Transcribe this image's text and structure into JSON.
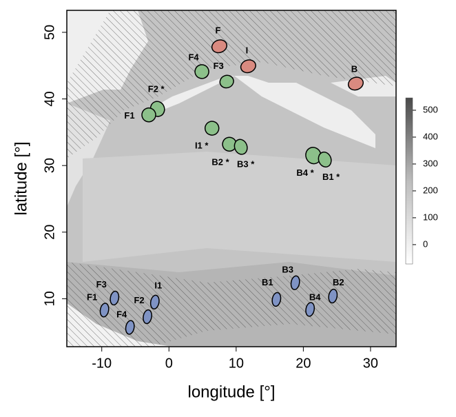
{
  "chart_data": {
    "type": "map",
    "xlabel": "longitude [°]",
    "ylabel": "latitude [°]",
    "xlim": [
      -15.2,
      33.8
    ],
    "ylim": [
      2.8,
      53.3
    ],
    "xticks": [
      -10,
      0,
      10,
      20,
      30
    ],
    "yticks": [
      10,
      20,
      30,
      40,
      50
    ],
    "series": [
      {
        "color": "#d98a80",
        "labels": [
          "F",
          "I",
          "B"
        ],
        "x": [
          7.5,
          11.8,
          27.8
        ],
        "y": [
          47.9,
          44.9,
          42.3
        ]
      },
      {
        "color": "#8cc08a",
        "labels": [
          "F4",
          "F3",
          "F2 *",
          "F1",
          "I1 *",
          "B2 *",
          "B3 *",
          "B4 *",
          "B1 *"
        ],
        "x": [
          4.9,
          8.6,
          -1.7,
          -3.0,
          6.4,
          9.0,
          10.7,
          21.5,
          23.2
        ],
        "y": [
          44.1,
          42.6,
          38.5,
          37.6,
          35.6,
          33.2,
          32.8,
          31.5,
          30.9
        ]
      },
      {
        "color": "#7f93c4",
        "labels": [
          "F3",
          "F1",
          "F2",
          "F4",
          "I1",
          "B1",
          "B3",
          "B4",
          "B2"
        ],
        "x": [
          -8.1,
          -9.6,
          -3.2,
          -5.8,
          -2.1,
          16.0,
          18.8,
          21.0,
          24.4
        ],
        "y": [
          10.1,
          8.3,
          7.3,
          5.7,
          9.5,
          9.9,
          12.4,
          8.4,
          10.4
        ]
      }
    ],
    "colorbar": {
      "lim": [
        -72,
        546
      ],
      "ticks": [
        0,
        100,
        200,
        300,
        400,
        500
      ]
    }
  }
}
